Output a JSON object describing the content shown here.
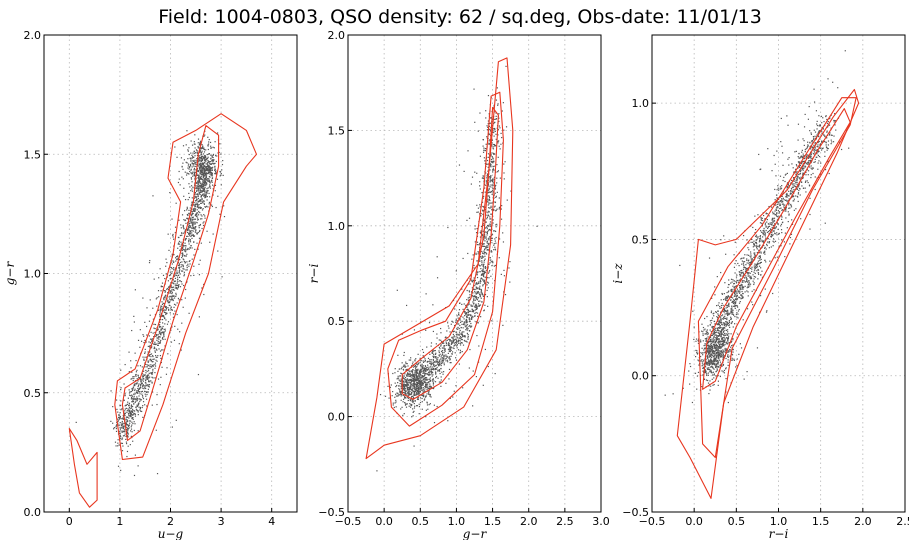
{
  "title": "Field: 1004-0803, QSO density: 62 / sq.deg, Obs-date: 11/01/13",
  "colors": {
    "points": "#555555",
    "contours": "#e8361f",
    "grid": "#b8b8b8"
  },
  "chart_data": [
    {
      "type": "scatter",
      "xlabel": "u−g",
      "ylabel": "g−r",
      "xlim": [
        -0.5,
        4.5
      ],
      "ylim": [
        0.0,
        2.0
      ],
      "xticks": [
        "0",
        "1",
        "2",
        "3",
        "4"
      ],
      "yticks": [
        "0.0",
        "0.5",
        "1.0",
        "1.5",
        "2.0"
      ],
      "grid": true,
      "locus": [
        [
          1.0,
          0.33
        ],
        [
          1.2,
          0.42
        ],
        [
          1.5,
          0.58
        ],
        [
          1.8,
          0.78
        ],
        [
          2.1,
          1.0
        ],
        [
          2.4,
          1.2
        ],
        [
          2.6,
          1.35
        ],
        [
          2.75,
          1.45
        ]
      ],
      "clump": {
        "x": 2.6,
        "y": 1.45
      },
      "contours": [
        [
          [
            1.05,
            0.45
          ],
          [
            1.15,
            0.3
          ],
          [
            1.4,
            0.34
          ],
          [
            1.7,
            0.55
          ],
          [
            2.05,
            0.8
          ],
          [
            2.45,
            1.05
          ],
          [
            2.75,
            1.25
          ],
          [
            2.95,
            1.45
          ],
          [
            2.95,
            1.58
          ],
          [
            2.7,
            1.62
          ],
          [
            2.55,
            1.5
          ],
          [
            2.45,
            1.3
          ],
          [
            2.15,
            1.05
          ],
          [
            1.75,
            0.78
          ],
          [
            1.4,
            0.56
          ],
          [
            1.1,
            0.52
          ],
          [
            1.05,
            0.45
          ]
        ],
        [
          [
            0.9,
            0.45
          ],
          [
            1.05,
            0.22
          ],
          [
            1.45,
            0.23
          ],
          [
            1.85,
            0.45
          ],
          [
            2.3,
            0.75
          ],
          [
            2.75,
            1.0
          ],
          [
            3.05,
            1.3
          ],
          [
            3.5,
            1.45
          ],
          [
            3.7,
            1.5
          ],
          [
            3.5,
            1.6
          ],
          [
            3.0,
            1.67
          ],
          [
            2.5,
            1.6
          ],
          [
            2.05,
            1.55
          ],
          [
            1.95,
            1.4
          ],
          [
            2.2,
            1.3
          ],
          [
            2.05,
            1.08
          ],
          [
            1.75,
            0.85
          ],
          [
            1.3,
            0.6
          ],
          [
            0.95,
            0.55
          ],
          [
            0.9,
            0.45
          ]
        ],
        [
          [
            0.0,
            0.35
          ],
          [
            0.15,
            0.3
          ],
          [
            0.35,
            0.2
          ],
          [
            0.55,
            0.25
          ],
          [
            0.55,
            0.05
          ],
          [
            0.4,
            0.02
          ],
          [
            0.2,
            0.08
          ],
          [
            0.1,
            0.2
          ],
          [
            0.0,
            0.35
          ]
        ]
      ]
    },
    {
      "type": "scatter",
      "xlabel": "g−r",
      "ylabel": "r−i",
      "xlim": [
        -0.5,
        3.0
      ],
      "ylim": [
        -0.5,
        2.0
      ],
      "xticks": [
        "−0.5",
        "0.0",
        "0.5",
        "1.0",
        "1.5",
        "2.0",
        "2.5",
        "3.0"
      ],
      "yticks": [
        "−0.5",
        "0.0",
        "0.5",
        "1.0",
        "1.5",
        "2.0"
      ],
      "grid": true,
      "locus": [
        [
          0.2,
          0.12
        ],
        [
          0.4,
          0.18
        ],
        [
          0.7,
          0.28
        ],
        [
          1.0,
          0.4
        ],
        [
          1.2,
          0.55
        ],
        [
          1.35,
          0.75
        ],
        [
          1.42,
          1.0
        ],
        [
          1.47,
          1.3
        ],
        [
          1.5,
          1.6
        ]
      ],
      "clump": {
        "x": 0.45,
        "y": 0.18
      },
      "contours": [
        [
          [
            0.25,
            0.12
          ],
          [
            0.4,
            0.09
          ],
          [
            0.8,
            0.18
          ],
          [
            1.15,
            0.35
          ],
          [
            1.38,
            0.6
          ],
          [
            1.48,
            0.95
          ],
          [
            1.54,
            1.3
          ],
          [
            1.58,
            1.58
          ],
          [
            1.5,
            1.62
          ],
          [
            1.45,
            1.3
          ],
          [
            1.38,
            0.95
          ],
          [
            1.2,
            0.62
          ],
          [
            0.9,
            0.42
          ],
          [
            0.5,
            0.3
          ],
          [
            0.25,
            0.22
          ],
          [
            0.25,
            0.12
          ]
        ],
        [
          [
            0.1,
            0.05
          ],
          [
            0.35,
            -0.05
          ],
          [
            0.8,
            0.06
          ],
          [
            1.25,
            0.22
          ],
          [
            1.5,
            0.55
          ],
          [
            1.6,
            1.0
          ],
          [
            1.65,
            1.45
          ],
          [
            1.6,
            1.7
          ],
          [
            1.48,
            1.68
          ],
          [
            1.38,
            1.2
          ],
          [
            1.2,
            0.72
          ],
          [
            0.85,
            0.5
          ],
          [
            0.5,
            0.45
          ],
          [
            0.2,
            0.4
          ],
          [
            0.05,
            0.25
          ],
          [
            0.1,
            0.05
          ]
        ],
        [
          [
            -0.25,
            -0.22
          ],
          [
            0.0,
            -0.15
          ],
          [
            0.5,
            -0.1
          ],
          [
            1.1,
            0.05
          ],
          [
            1.55,
            0.35
          ],
          [
            1.75,
            0.9
          ],
          [
            1.78,
            1.5
          ],
          [
            1.7,
            1.88
          ],
          [
            1.58,
            1.86
          ],
          [
            1.45,
            1.3
          ],
          [
            1.3,
            0.8
          ],
          [
            0.9,
            0.58
          ],
          [
            0.45,
            0.48
          ],
          [
            0.0,
            0.38
          ],
          [
            -0.1,
            0.1
          ],
          [
            -0.25,
            -0.22
          ]
        ]
      ]
    },
    {
      "type": "scatter",
      "xlabel": "r−i",
      "ylabel": "i−z",
      "xlim": [
        -0.5,
        2.5
      ],
      "ylim": [
        -0.5,
        1.25
      ],
      "xticks": [
        "−0.5",
        "0.0",
        "0.5",
        "1.0",
        "1.5",
        "2.0",
        "2.5"
      ],
      "yticks": [
        "−0.5",
        "0.0",
        "0.5",
        "1.0"
      ],
      "grid": true,
      "locus": [
        [
          0.15,
          0.0
        ],
        [
          0.25,
          0.12
        ],
        [
          0.4,
          0.25
        ],
        [
          0.6,
          0.37
        ],
        [
          0.85,
          0.52
        ],
        [
          1.1,
          0.66
        ],
        [
          1.35,
          0.8
        ],
        [
          1.6,
          0.92
        ]
      ],
      "clump": {
        "x": 0.25,
        "y": 0.1
      },
      "contours": [
        [
          [
            0.1,
            -0.05
          ],
          [
            0.25,
            -0.02
          ],
          [
            0.5,
            0.18
          ],
          [
            0.85,
            0.38
          ],
          [
            1.2,
            0.58
          ],
          [
            1.6,
            0.8
          ],
          [
            1.85,
            0.93
          ],
          [
            1.78,
            0.98
          ],
          [
            1.45,
            0.82
          ],
          [
            1.05,
            0.6
          ],
          [
            0.7,
            0.42
          ],
          [
            0.35,
            0.25
          ],
          [
            0.15,
            0.12
          ],
          [
            0.1,
            -0.05
          ]
        ],
        [
          [
            0.1,
            -0.25
          ],
          [
            0.25,
            -0.3
          ],
          [
            0.45,
            0.1
          ],
          [
            0.95,
            0.4
          ],
          [
            1.4,
            0.68
          ],
          [
            1.85,
            0.92
          ],
          [
            1.92,
            1.02
          ],
          [
            1.75,
            1.02
          ],
          [
            1.3,
            0.8
          ],
          [
            0.8,
            0.55
          ],
          [
            0.4,
            0.4
          ],
          [
            0.05,
            0.2
          ],
          [
            0.1,
            -0.25
          ]
        ],
        [
          [
            -0.05,
            -0.3
          ],
          [
            0.2,
            -0.45
          ],
          [
            0.35,
            -0.1
          ],
          [
            0.7,
            0.18
          ],
          [
            1.2,
            0.5
          ],
          [
            1.7,
            0.82
          ],
          [
            1.95,
            1.0
          ],
          [
            1.9,
            1.05
          ],
          [
            1.65,
            0.95
          ],
          [
            1.1,
            0.68
          ],
          [
            0.5,
            0.5
          ],
          [
            0.25,
            0.48
          ],
          [
            0.05,
            0.5
          ],
          [
            -0.05,
            0.2
          ],
          [
            -0.2,
            -0.22
          ],
          [
            -0.05,
            -0.3
          ]
        ]
      ]
    }
  ]
}
